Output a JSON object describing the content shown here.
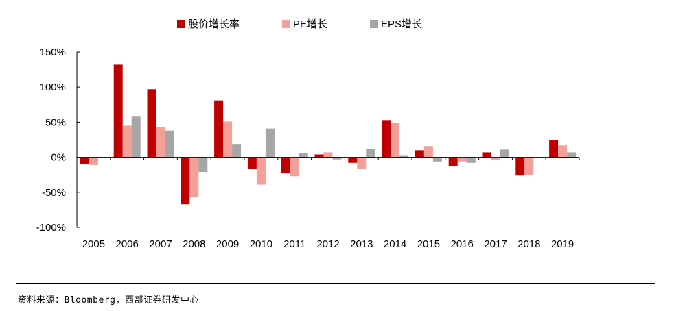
{
  "legend": {
    "items": [
      {
        "label": "股价增长率",
        "color": "#c00000"
      },
      {
        "label": "PE增长",
        "color": "#f4a09a"
      },
      {
        "label": "EPS增长",
        "color": "#a6a6a6"
      }
    ]
  },
  "source": "资料来源：Bloomberg，西部证券研发中心",
  "chart_data": {
    "type": "bar",
    "categories": [
      "2005",
      "2006",
      "2007",
      "2008",
      "2009",
      "2010",
      "2011",
      "2012",
      "2013",
      "2014",
      "2015",
      "2016",
      "2017",
      "2018",
      "2019"
    ],
    "y_ticks": [
      "150%",
      "100%",
      "50%",
      "0%",
      "-50%",
      "-100%"
    ],
    "ylim": [
      -100,
      150
    ],
    "unit": "%",
    "grid": false,
    "legend_position": "top",
    "series": [
      {
        "name": "股价增长率",
        "color": "#c00000",
        "values": [
          -10,
          132,
          97,
          -67,
          81,
          -16,
          -23,
          4,
          -8,
          53,
          10,
          -13,
          7,
          -26,
          24
        ]
      },
      {
        "name": "PE增长",
        "color": "#f4a09a",
        "values": [
          -11,
          45,
          43,
          -57,
          51,
          -39,
          -27,
          7,
          -17,
          49,
          16,
          -6,
          -4,
          -25,
          17
        ]
      },
      {
        "name": "EPS增长",
        "color": "#a6a6a6",
        "values": [
          0,
          58,
          38,
          -21,
          19,
          41,
          6,
          -3,
          12,
          3,
          -6,
          -8,
          11,
          0,
          7
        ]
      }
    ]
  }
}
